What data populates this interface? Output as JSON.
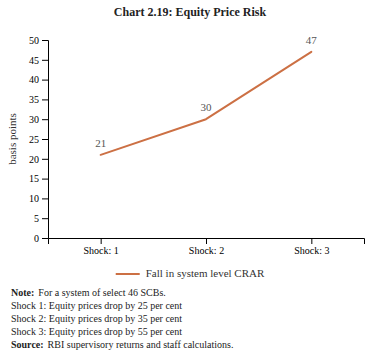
{
  "chart_data": {
    "type": "line",
    "title": "Chart 2.19: Equity Price Risk",
    "categories": [
      "Shock: 1",
      "Shock: 2",
      "Shock: 3"
    ],
    "series": [
      {
        "name": "Fall in system level CRAR",
        "color": "#CC7044",
        "values": [
          21,
          30,
          47
        ]
      }
    ],
    "y_label": "basis points",
    "ylim": [
      0,
      50
    ],
    "yticks": [
      0,
      5,
      10,
      15,
      20,
      25,
      30,
      35,
      40,
      45,
      50
    ],
    "grid": false,
    "legend": "bottom",
    "data_labels": true,
    "annotations": [
      {
        "label": "Note:",
        "text": "For a system of select 46 SCBs."
      },
      {
        "text": "Shock 1:  Equity prices drop by 25 per cent"
      },
      {
        "text": "Shock 2:  Equity prices drop by 35 per cent"
      },
      {
        "text": "Shock 3:  Equity prices drop by 55 per cent"
      },
      {
        "label": "Source:",
        "text": "RBI supervisory returns and staff calculations."
      }
    ]
  }
}
